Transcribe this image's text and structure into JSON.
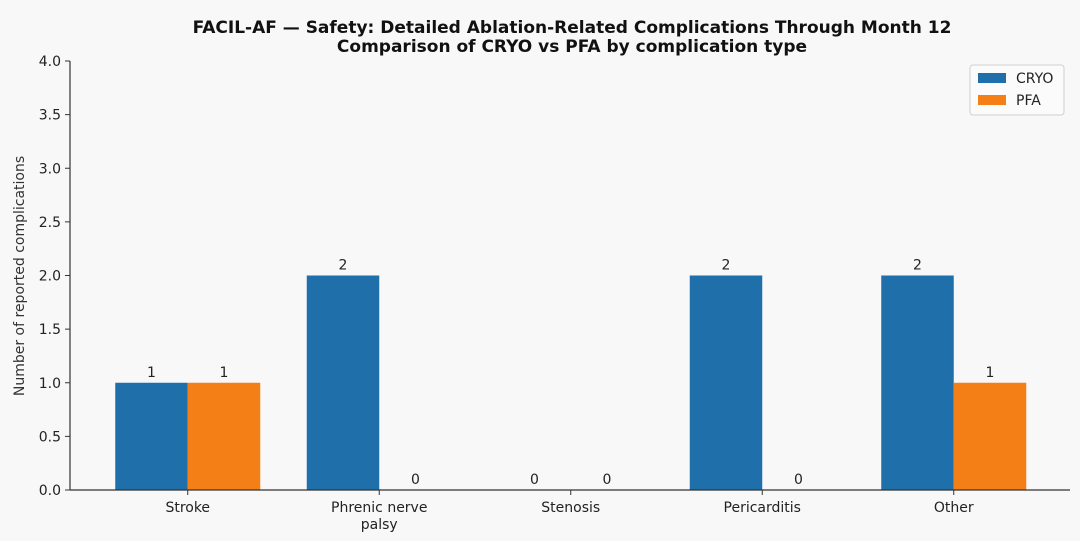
{
  "chart_data": {
    "type": "bar",
    "title": "FACIL-AF — Safety: Detailed Ablation-Related Complications Through Month 12",
    "subtitle": "Comparison of CRYO vs PFA by complication type",
    "xlabel": "",
    "ylabel": "Number of reported complications",
    "categories": [
      [
        "Stroke"
      ],
      [
        "Phrenic nerve",
        "palsy"
      ],
      [
        "Stenosis"
      ],
      [
        "Pericarditis"
      ],
      [
        "Other"
      ]
    ],
    "series": [
      {
        "name": "CRYO",
        "color": "#1f6fab",
        "values": [
          1,
          2,
          0,
          2,
          2
        ]
      },
      {
        "name": "PFA",
        "color": "#f57f17",
        "values": [
          1,
          0,
          0,
          0,
          1
        ]
      }
    ],
    "ylim": [
      0,
      4
    ],
    "yticks": [
      "0.0",
      "0.5",
      "1.0",
      "1.5",
      "2.0",
      "2.5",
      "3.0",
      "3.5",
      "4.0"
    ],
    "grid": false,
    "legend_position": "top-right",
    "data_labels": true
  }
}
